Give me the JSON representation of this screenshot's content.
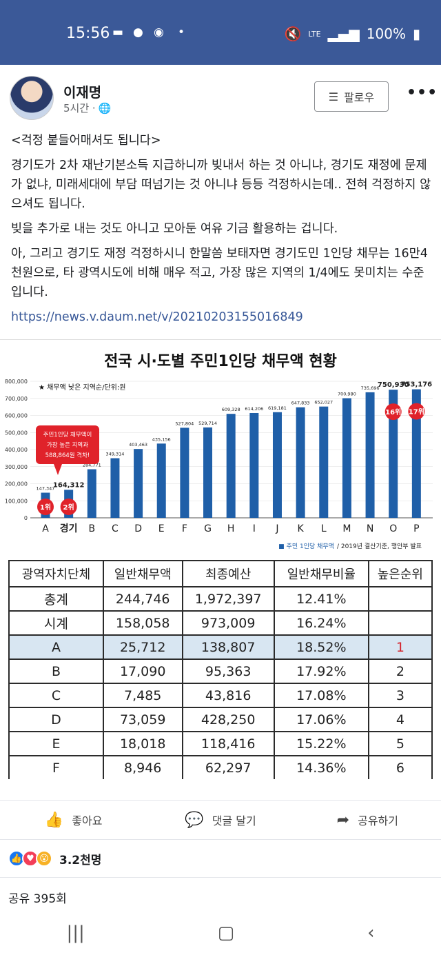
{
  "status": {
    "time": "15:56",
    "lte": "LTE",
    "battery": "100%"
  },
  "post": {
    "author": "이재명",
    "time": "5시간 ·",
    "follow_label": "팔로우",
    "title_line": "<걱정 붙들어매셔도 됩니다>",
    "para1": "경기도가 2차 재난기본소득 지급하니까 빚내서 하는 것 아니냐, 경기도 재정에 문제가 없냐, 미래세대에 부담 떠넘기는 것 아니냐 등등 걱정하시는데.. 전혀 걱정하지 않으셔도 됩니다.",
    "para2": "빚을 추가로 내는 것도 아니고 모아둔 여유 기금 활용하는 겁니다.",
    "para3": "아, 그리고 경기도 재정 걱정하시니 한말씀 보태자면 경기도민 1인당 채무는 16만4천원으로, 타 광역시도에 비해 매우 적고, 가장 많은 지역의 1/4에도 못미치는 수준입니다.",
    "link": "https://news.v.daum.net/v/20210203155016849"
  },
  "chart_data": {
    "type": "bar",
    "title": "전국 시·도별 주민1인당 채무액 현황",
    "subtitle": "★ 채무액 낮은 지역순/단위:원",
    "categories": [
      "A",
      "경기",
      "B",
      "C",
      "D",
      "E",
      "F",
      "G",
      "H",
      "I",
      "J",
      "K",
      "L",
      "M",
      "N",
      "O",
      "P"
    ],
    "values": [
      147347,
      164312,
      284771,
      349314,
      403463,
      435156,
      527804,
      529714,
      609328,
      614206,
      619181,
      647833,
      652027,
      700980,
      735696,
      750930,
      753176
    ],
    "value_labels": [
      "147,347",
      "164,312",
      "284,771",
      "349,314",
      "403,463",
      "435,156",
      "527,804",
      "529,714",
      "609,328",
      "614,206",
      "619,181",
      "647,833",
      "652,027",
      "700,980",
      "735,696",
      "750,930",
      "753,176"
    ],
    "yticks": [
      "800,000",
      "700,000",
      "600,000",
      "500,000",
      "400,000",
      "300,000",
      "200,000",
      "100,000",
      "0"
    ],
    "ylim": [
      0,
      800000
    ],
    "color": "#1f5fa8",
    "rank_badges": [
      {
        "index": 0,
        "text": "1위"
      },
      {
        "index": 1,
        "text": "2위"
      },
      {
        "index": 15,
        "text": "16위"
      },
      {
        "index": 16,
        "text": "17위"
      }
    ],
    "callout": [
      "주민1인당 채무액이",
      "가장 높은 지역과",
      "588,864원 격차!"
    ],
    "legend": "■ 주민 1인당 채무액",
    "source": "/ 2019년 결산기준, 행안부 발표"
  },
  "table": {
    "headers": [
      "광역자치단체",
      "일반채무액",
      "최종예산",
      "일반채무비율",
      "높은순위"
    ],
    "rows": [
      [
        "총계",
        "244,746",
        "1,972,397",
        "12.41%",
        ""
      ],
      [
        "시계",
        "158,058",
        "973,009",
        "16.24%",
        ""
      ],
      [
        "A",
        "25,712",
        "138,807",
        "18.52%",
        "1"
      ],
      [
        "B",
        "17,090",
        "95,363",
        "17.92%",
        "2"
      ],
      [
        "C",
        "7,485",
        "43,816",
        "17.08%",
        "3"
      ],
      [
        "D",
        "73,059",
        "428,250",
        "17.06%",
        "4"
      ],
      [
        "E",
        "18,018",
        "118,416",
        "15.22%",
        "5"
      ],
      [
        "F",
        "8,946",
        "62,297",
        "14.36%",
        "6"
      ]
    ]
  },
  "actions": {
    "like": "좋아요",
    "comment": "댓글 달기",
    "share": "공유하기"
  },
  "reactions": {
    "count": "3.2천명"
  },
  "shares_text": "공유 395회",
  "icons": {
    "like": "thumbs-up-icon",
    "comment": "comment-icon",
    "share": "share-icon"
  }
}
